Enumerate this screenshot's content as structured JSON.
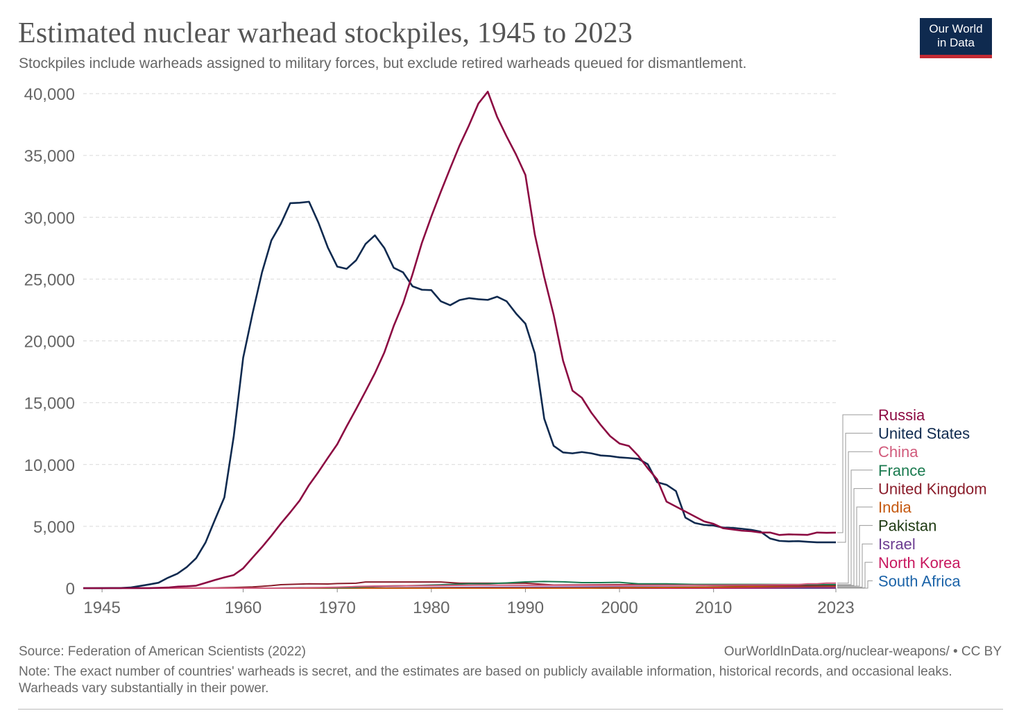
{
  "header": {
    "title": "Estimated nuclear warhead stockpiles, 1945 to 2023",
    "subtitle": "Stockpiles include warheads assigned to military forces, but exclude retired warheads queued for dismantlement."
  },
  "logo": {
    "line1": "Our World",
    "line2": "in Data",
    "bg": "#0f2a4f",
    "accent": "#c32a33"
  },
  "footer": {
    "source": "Source: Federation of American Scientists (2022)",
    "url": "OurWorldInData.org/nuclear-weapons/ • CC BY",
    "note": "Note: The exact number of countries' warheads is secret, and the estimates are based on publicly available information, historical records, and occasional leaks. Warheads vary substantially in their power."
  },
  "chart_data": {
    "type": "line",
    "title": "Estimated nuclear warhead stockpiles, 1945 to 2023",
    "xlim": [
      1943,
      2023
    ],
    "ylim": [
      0,
      40000
    ],
    "x_ticks": [
      1945,
      1960,
      1970,
      1980,
      1990,
      2000,
      2010,
      2023
    ],
    "x_tick_labels": [
      "1945",
      "1960",
      "1970",
      "1980",
      "1990",
      "2000",
      "2010",
      "2023"
    ],
    "y_ticks": [
      0,
      5000,
      10000,
      15000,
      20000,
      25000,
      30000,
      35000,
      40000
    ],
    "y_tick_labels": [
      "0",
      "5,000",
      "10,000",
      "15,000",
      "20,000",
      "25,000",
      "30,000",
      "35,000",
      "40,000"
    ],
    "grid": "horizontal dashed",
    "legend_placement": "right, line labels",
    "series": [
      {
        "name": "Russia",
        "color": "#8c0a42",
        "points": [
          [
            1943,
            0
          ],
          [
            1948,
            0
          ],
          [
            1949,
            1
          ],
          [
            1950,
            5
          ],
          [
            1951,
            25
          ],
          [
            1952,
            50
          ],
          [
            1953,
            120
          ],
          [
            1954,
            150
          ],
          [
            1955,
            200
          ],
          [
            1956,
            426
          ],
          [
            1957,
            660
          ],
          [
            1958,
            869
          ],
          [
            1959,
            1060
          ],
          [
            1960,
            1605
          ],
          [
            1961,
            2471
          ],
          [
            1962,
            3322
          ],
          [
            1963,
            4238
          ],
          [
            1964,
            5221
          ],
          [
            1965,
            6129
          ],
          [
            1966,
            7089
          ],
          [
            1967,
            8339
          ],
          [
            1968,
            9399
          ],
          [
            1969,
            10538
          ],
          [
            1970,
            11643
          ],
          [
            1971,
            13092
          ],
          [
            1972,
            14478
          ],
          [
            1973,
            15915
          ],
          [
            1974,
            17385
          ],
          [
            1975,
            19055
          ],
          [
            1976,
            21205
          ],
          [
            1977,
            23044
          ],
          [
            1978,
            25393
          ],
          [
            1979,
            27935
          ],
          [
            1980,
            30062
          ],
          [
            1981,
            32049
          ],
          [
            1982,
            33952
          ],
          [
            1983,
            35804
          ],
          [
            1984,
            37431
          ],
          [
            1985,
            39197
          ],
          [
            1986,
            40159
          ],
          [
            1987,
            38107
          ],
          [
            1988,
            36538
          ],
          [
            1989,
            35078
          ],
          [
            1990,
            33417
          ],
          [
            1991,
            28595
          ],
          [
            1992,
            25155
          ],
          [
            1993,
            22101
          ],
          [
            1994,
            18399
          ],
          [
            1995,
            15980
          ],
          [
            1996,
            15400
          ],
          [
            1997,
            14200
          ],
          [
            1998,
            13200
          ],
          [
            1999,
            12300
          ],
          [
            2000,
            11700
          ],
          [
            2001,
            11500
          ],
          [
            2002,
            10700
          ],
          [
            2003,
            9700
          ],
          [
            2004,
            8800
          ],
          [
            2005,
            7000
          ],
          [
            2006,
            6600
          ],
          [
            2007,
            6200
          ],
          [
            2008,
            5800
          ],
          [
            2009,
            5400
          ],
          [
            2010,
            5200
          ],
          [
            2011,
            4850
          ],
          [
            2012,
            4750
          ],
          [
            2013,
            4650
          ],
          [
            2014,
            4600
          ],
          [
            2015,
            4500
          ],
          [
            2016,
            4500
          ],
          [
            2017,
            4300
          ],
          [
            2018,
            4350
          ],
          [
            2019,
            4330
          ],
          [
            2020,
            4310
          ],
          [
            2021,
            4500
          ],
          [
            2022,
            4480
          ],
          [
            2023,
            4489
          ]
        ]
      },
      {
        "name": "United States",
        "color": "#0f2a4f",
        "points": [
          [
            1943,
            0
          ],
          [
            1945,
            2
          ],
          [
            1946,
            9
          ],
          [
            1947,
            13
          ],
          [
            1948,
            50
          ],
          [
            1949,
            170
          ],
          [
            1950,
            299
          ],
          [
            1951,
            438
          ],
          [
            1952,
            841
          ],
          [
            1953,
            1169
          ],
          [
            1954,
            1703
          ],
          [
            1955,
            2422
          ],
          [
            1956,
            3692
          ],
          [
            1957,
            5543
          ],
          [
            1958,
            7345
          ],
          [
            1959,
            12298
          ],
          [
            1960,
            18638
          ],
          [
            1961,
            22229
          ],
          [
            1962,
            25540
          ],
          [
            1963,
            28133
          ],
          [
            1964,
            29463
          ],
          [
            1965,
            31139
          ],
          [
            1966,
            31175
          ],
          [
            1967,
            31255
          ],
          [
            1968,
            29561
          ],
          [
            1969,
            27552
          ],
          [
            1970,
            26008
          ],
          [
            1971,
            25830
          ],
          [
            1972,
            26516
          ],
          [
            1973,
            27835
          ],
          [
            1974,
            28537
          ],
          [
            1975,
            27519
          ],
          [
            1976,
            25914
          ],
          [
            1977,
            25542
          ],
          [
            1978,
            24418
          ],
          [
            1979,
            24138
          ],
          [
            1980,
            24104
          ],
          [
            1981,
            23208
          ],
          [
            1982,
            22886
          ],
          [
            1983,
            23305
          ],
          [
            1984,
            23459
          ],
          [
            1985,
            23368
          ],
          [
            1986,
            23317
          ],
          [
            1987,
            23575
          ],
          [
            1988,
            23205
          ],
          [
            1989,
            22217
          ],
          [
            1990,
            21392
          ],
          [
            1991,
            18986
          ],
          [
            1992,
            13708
          ],
          [
            1993,
            11511
          ],
          [
            1994,
            10979
          ],
          [
            1995,
            10904
          ],
          [
            1996,
            11011
          ],
          [
            1997,
            10903
          ],
          [
            1998,
            10732
          ],
          [
            1999,
            10685
          ],
          [
            2000,
            10577
          ],
          [
            2001,
            10526
          ],
          [
            2002,
            10457
          ],
          [
            2003,
            10027
          ],
          [
            2004,
            8570
          ],
          [
            2005,
            8360
          ],
          [
            2006,
            7853
          ],
          [
            2007,
            5709
          ],
          [
            2008,
            5273
          ],
          [
            2009,
            5113
          ],
          [
            2010,
            5066
          ],
          [
            2011,
            4897
          ],
          [
            2012,
            4881
          ],
          [
            2013,
            4804
          ],
          [
            2014,
            4717
          ],
          [
            2015,
            4571
          ],
          [
            2016,
            4018
          ],
          [
            2017,
            3822
          ],
          [
            2018,
            3785
          ],
          [
            2019,
            3805
          ],
          [
            2020,
            3750
          ],
          [
            2021,
            3708
          ],
          [
            2022,
            3708
          ],
          [
            2023,
            3708
          ]
        ]
      },
      {
        "name": "China",
        "color": "#d15a7b",
        "points": [
          [
            1943,
            0
          ],
          [
            1963,
            0
          ],
          [
            1964,
            1
          ],
          [
            1966,
            20
          ],
          [
            1968,
            40
          ],
          [
            1970,
            75
          ],
          [
            1972,
            130
          ],
          [
            1974,
            170
          ],
          [
            1976,
            180
          ],
          [
            1978,
            200
          ],
          [
            1980,
            205
          ],
          [
            1985,
            243
          ],
          [
            1990,
            232
          ],
          [
            1995,
            234
          ],
          [
            2000,
            232
          ],
          [
            2005,
            235
          ],
          [
            2010,
            240
          ],
          [
            2015,
            260
          ],
          [
            2019,
            290
          ],
          [
            2020,
            350
          ],
          [
            2021,
            350
          ],
          [
            2022,
            410
          ],
          [
            2023,
            410
          ]
        ]
      },
      {
        "name": "France",
        "color": "#1a7a4f",
        "points": [
          [
            1943,
            0
          ],
          [
            1963,
            0
          ],
          [
            1964,
            4
          ],
          [
            1966,
            36
          ],
          [
            1968,
            36
          ],
          [
            1970,
            36
          ],
          [
            1972,
            70
          ],
          [
            1974,
            150
          ],
          [
            1976,
            180
          ],
          [
            1978,
            200
          ],
          [
            1980,
            250
          ],
          [
            1982,
            300
          ],
          [
            1984,
            360
          ],
          [
            1986,
            355
          ],
          [
            1988,
            420
          ],
          [
            1990,
            505
          ],
          [
            1992,
            540
          ],
          [
            1994,
            510
          ],
          [
            1996,
            450
          ],
          [
            1998,
            450
          ],
          [
            2000,
            470
          ],
          [
            2002,
            350
          ],
          [
            2005,
            350
          ],
          [
            2008,
            300
          ],
          [
            2010,
            300
          ],
          [
            2015,
            300
          ],
          [
            2020,
            290
          ],
          [
            2023,
            290
          ]
        ]
      },
      {
        "name": "United Kingdom",
        "color": "#8a1c2a",
        "points": [
          [
            1943,
            0
          ],
          [
            1952,
            0
          ],
          [
            1953,
            1
          ],
          [
            1955,
            10
          ],
          [
            1957,
            20
          ],
          [
            1959,
            50
          ],
          [
            1961,
            100
          ],
          [
            1962,
            150
          ],
          [
            1963,
            205
          ],
          [
            1964,
            280
          ],
          [
            1967,
            350
          ],
          [
            1969,
            340
          ],
          [
            1970,
            375
          ],
          [
            1972,
            400
          ],
          [
            1973,
            500
          ],
          [
            1976,
            500
          ],
          [
            1980,
            500
          ],
          [
            1981,
            500
          ],
          [
            1983,
            400
          ],
          [
            1990,
            400
          ],
          [
            1993,
            250
          ],
          [
            2000,
            280
          ],
          [
            2005,
            280
          ],
          [
            2010,
            225
          ],
          [
            2015,
            215
          ],
          [
            2020,
            195
          ],
          [
            2023,
            225
          ]
        ]
      },
      {
        "name": "India",
        "color": "#c55a11",
        "points": [
          [
            1943,
            0
          ],
          [
            1997,
            0
          ],
          [
            1998,
            15
          ],
          [
            2002,
            40
          ],
          [
            2006,
            60
          ],
          [
            2010,
            80
          ],
          [
            2014,
            110
          ],
          [
            2018,
            140
          ],
          [
            2022,
            160
          ],
          [
            2023,
            164
          ]
        ]
      },
      {
        "name": "Pakistan",
        "color": "#1e3a12",
        "points": [
          [
            1943,
            0
          ],
          [
            1997,
            0
          ],
          [
            1998,
            10
          ],
          [
            2002,
            35
          ],
          [
            2006,
            60
          ],
          [
            2010,
            90
          ],
          [
            2014,
            120
          ],
          [
            2018,
            150
          ],
          [
            2022,
            165
          ],
          [
            2023,
            170
          ]
        ]
      },
      {
        "name": "Israel",
        "color": "#6c3d91",
        "points": [
          [
            1943,
            0
          ],
          [
            1966,
            0
          ],
          [
            1967,
            2
          ],
          [
            1970,
            15
          ],
          [
            1975,
            30
          ],
          [
            1980,
            45
          ],
          [
            1985,
            60
          ],
          [
            1990,
            70
          ],
          [
            1995,
            80
          ],
          [
            2000,
            90
          ],
          [
            2023,
            90
          ]
        ]
      },
      {
        "name": "North Korea",
        "color": "#c8185f",
        "points": [
          [
            1943,
            0
          ],
          [
            2005,
            0
          ],
          [
            2006,
            2
          ],
          [
            2010,
            7
          ],
          [
            2015,
            15
          ],
          [
            2020,
            40
          ],
          [
            2023,
            30
          ]
        ]
      },
      {
        "name": "South Africa",
        "color": "#1b63a8",
        "points": [
          [
            1943,
            0
          ],
          [
            1978,
            0
          ],
          [
            1979,
            1
          ],
          [
            1982,
            3
          ],
          [
            1987,
            6
          ],
          [
            1990,
            6
          ],
          [
            1991,
            0
          ],
          [
            2023,
            0
          ]
        ]
      }
    ]
  }
}
